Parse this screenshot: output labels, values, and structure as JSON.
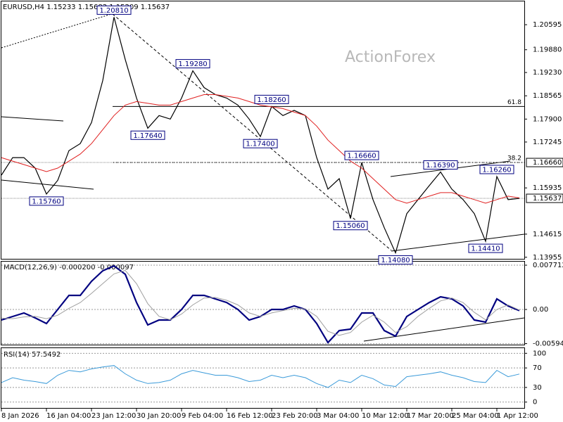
{
  "chart_data": [
    {
      "type": "price",
      "title": "EURUSD,H4 1.15233 1.15682 1.15209 1.15637",
      "watermark": "ActionForex",
      "categories": [
        "8 Jan 2026",
        null,
        null,
        null,
        "16 Jan 04:00",
        null,
        null,
        null,
        "23 Jan 12:00",
        null,
        null,
        null,
        "30 Jan 20:00",
        null,
        null,
        null,
        "9 Feb 04:00",
        null,
        null,
        null,
        "16 Feb 12:00",
        null,
        null,
        null,
        "23 Feb 20:00",
        null,
        null,
        null,
        "3 Mar 04:00",
        null,
        null,
        null,
        "10 Mar 12:00",
        null,
        null,
        null,
        "17 Mar 20:00",
        null,
        null,
        null,
        "25 Mar 04:00",
        null,
        null,
        null,
        "1 Apr 12:00",
        null,
        null
      ],
      "series": [
        {
          "name": "EURUSD",
          "color": "#000000",
          "values": [
            1.163,
            1.168,
            1.168,
            1.165,
            1.1576,
            1.1615,
            1.17,
            1.172,
            1.178,
            1.19,
            1.2081,
            1.196,
            1.185,
            1.1764,
            1.18,
            1.179,
            1.185,
            1.1928,
            1.188,
            1.186,
            1.185,
            1.183,
            1.179,
            1.174,
            1.1826,
            1.18,
            1.1815,
            1.18,
            1.168,
            1.159,
            1.162,
            1.1506,
            1.1666,
            1.156,
            1.148,
            1.1408,
            1.152,
            1.156,
            1.16,
            1.1639,
            1.159,
            1.156,
            1.152,
            1.1441,
            1.1626,
            1.156,
            1.15637
          ]
        },
        {
          "name": "MA",
          "color": "#e02020",
          "values": [
            1.168,
            1.167,
            1.166,
            1.165,
            1.164,
            1.165,
            1.167,
            1.169,
            1.172,
            1.176,
            1.18,
            1.183,
            1.184,
            1.1835,
            1.183,
            1.183,
            1.184,
            1.185,
            1.186,
            1.186,
            1.1855,
            1.185,
            1.184,
            1.183,
            1.1825,
            1.182,
            1.181,
            1.18,
            1.177,
            1.173,
            1.17,
            1.167,
            1.165,
            1.162,
            1.159,
            1.156,
            1.155,
            1.156,
            1.157,
            1.158,
            1.158,
            1.157,
            1.156,
            1.155,
            1.156,
            1.157,
            1.1565
          ]
        }
      ],
      "annotations": [
        {
          "value": 1.2081,
          "label": "1.20810"
        },
        {
          "value": 1.1928,
          "label": "1.19280"
        },
        {
          "value": 1.1764,
          "label": "1.17640"
        },
        {
          "value": 1.1826,
          "label": "1.18260"
        },
        {
          "value": 1.174,
          "label": "1.17400"
        },
        {
          "value": 1.1666,
          "label": "1.16660"
        },
        {
          "value": 1.1576,
          "label": "1.15760"
        },
        {
          "value": 1.1506,
          "label": "1.15060"
        },
        {
          "value": 1.1408,
          "label": "1.14080"
        },
        {
          "value": 1.1639,
          "label": "1.16390"
        },
        {
          "value": 1.1626,
          "label": "1.16260"
        },
        {
          "value": 1.1441,
          "label": "1.14410"
        }
      ],
      "levels": [
        {
          "name": "61.8",
          "value": 1.1826
        },
        {
          "name": "38.2",
          "value": 1.1666
        }
      ],
      "price_labels": [
        {
          "value": 1.1666,
          "label": "1.16660"
        },
        {
          "value": 1.15637,
          "label": "1.15637"
        }
      ],
      "ylim": [
        1.1391,
        1.2126
      ],
      "yticks": [
        1.20595,
        {
          "value": 1.1988,
          "label": "1.19880"
        },
        {
          "value": 1.1923,
          "label": "1.19230"
        },
        1.18565,
        {
          "value": 1.179,
          "label": "1.17900"
        },
        1.17245,
        1.15935,
        1.14615,
        1.13955
      ]
    },
    {
      "type": "macd",
      "title": "MACD(12,26,9) -0.000200 -0.000097",
      "series": [
        {
          "name": "MACD",
          "color": "#000080",
          "values": [
            -0.00184,
            -0.00122,
            -0.00061,
            -0.00147,
            -0.00245,
            0,
            0.00245,
            0.00245,
            0.0049,
            0.00673,
            0.00759,
            0.00612,
            0.00122,
            -0.00269,
            -0.00184,
            -0.00184,
            0,
            0.00245,
            0.00245,
            0.00184,
            0.00122,
            0,
            -0.00184,
            -0.00122,
            0,
            0,
            0.00061,
            0,
            -0.00245,
            -0.00575,
            -0.00367,
            -0.00343,
            -0.00061,
            -0.00061,
            -0.00367,
            -0.00465,
            -0.00122,
            0,
            0.00122,
            0.0022,
            0.00184,
            0.00061,
            -0.00184,
            -0.0022,
            0.00184,
            0.00061,
            -0.0002
          ]
        },
        {
          "name": "Signal",
          "color": "#a0a0a0",
          "values": [
            -0.0015,
            -0.0016,
            -0.0013,
            -0.0012,
            -0.0016,
            -0.001,
            0.0002,
            0.0012,
            0.0028,
            0.0045,
            0.0062,
            0.0068,
            0.0045,
            0.001,
            -0.0012,
            -0.0018,
            -0.0008,
            0.0008,
            0.002,
            0.0021,
            0.0016,
            0.0008,
            -0.0006,
            -0.0012,
            -0.0006,
            -0.0002,
            0.0002,
            0.0001,
            -0.0012,
            -0.0038,
            -0.0045,
            -0.004,
            -0.0022,
            -0.001,
            -0.0022,
            -0.004,
            -0.003,
            -0.0012,
            0.0002,
            0.0015,
            0.002,
            0.0012,
            -0.0005,
            -0.0018,
            0.0,
            0.0008,
            -9.7e-05
          ]
        }
      ],
      "ylim": [
        -0.00612,
        0.00845
      ],
      "yticks": [
        0.007712,
        {
          "value": 0,
          "label": "0.00"
        },
        -0.005944
      ]
    },
    {
      "type": "rsi",
      "title": "RSI(14) 57.5492",
      "series": [
        {
          "name": "RSI",
          "color": "#3a9ad9",
          "values": [
            40,
            50,
            45,
            42,
            38,
            55,
            65,
            62,
            68,
            72,
            75,
            58,
            45,
            38,
            40,
            45,
            58,
            65,
            60,
            55,
            55,
            50,
            42,
            45,
            55,
            50,
            55,
            50,
            38,
            30,
            45,
            40,
            55,
            48,
            35,
            32,
            52,
            55,
            58,
            62,
            55,
            50,
            42,
            40,
            65,
            52,
            57.5492
          ]
        }
      ],
      "ylim": [
        -12,
        112
      ],
      "yticks": [
        100,
        70,
        30,
        0
      ]
    }
  ]
}
